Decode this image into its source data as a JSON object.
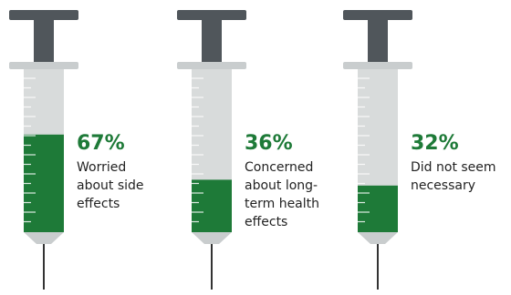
{
  "chart_data": {
    "type": "bar",
    "categories": [
      "Worried about side effects",
      "Concerned about long-term health effects",
      "Did not seem necessary"
    ],
    "values": [
      67,
      36,
      32
    ],
    "value_labels": [
      "67%",
      "36%",
      "32%"
    ],
    "ylim": [
      0,
      100
    ],
    "color": "#1e7a38"
  }
}
